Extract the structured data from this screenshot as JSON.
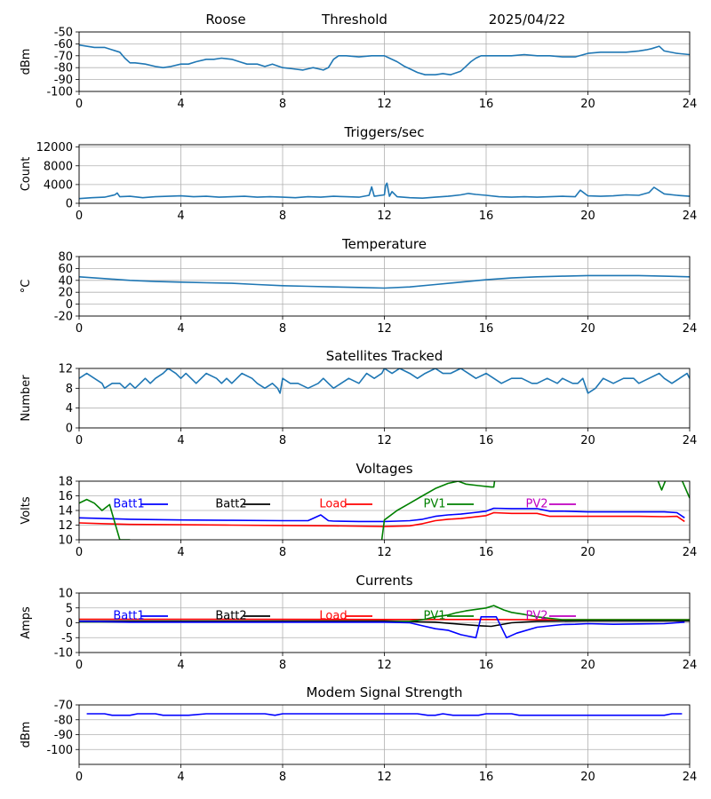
{
  "header": {
    "station": "Roose",
    "label": "Threshold",
    "date": "2025/04/22"
  },
  "colors": {
    "series_default": "#1f77b4",
    "blue": "#0000ff",
    "black": "#000000",
    "red": "#ff0000",
    "green": "#008000",
    "magenta": "#bf00bf",
    "grid": "#b0b0b0"
  },
  "chart_data": [
    {
      "id": "threshold",
      "type": "line",
      "title": "",
      "ylabel": "dBm",
      "ylim": [
        -100,
        -50
      ],
      "yticks": [
        -50,
        -60,
        -70,
        -80,
        -90,
        -100
      ],
      "xlim": [
        0,
        24
      ],
      "xticks": [
        0,
        4,
        8,
        12,
        16,
        20,
        24
      ],
      "series": [
        {
          "color": "#1f77b4",
          "x": [
            0,
            0.3,
            0.6,
            1,
            1.3,
            1.6,
            1.8,
            2,
            2.2,
            2.6,
            3,
            3.3,
            3.6,
            4,
            4.3,
            4.6,
            5,
            5.3,
            5.6,
            6,
            6.3,
            6.6,
            7,
            7.3,
            7.6,
            8,
            8.4,
            8.8,
            9,
            9.2,
            9.4,
            9.6,
            9.8,
            10,
            10.2,
            10.5,
            11,
            11.5,
            12,
            12.2,
            12.5,
            12.8,
            13,
            13.3,
            13.6,
            14,
            14.3,
            14.6,
            15,
            15.2,
            15.4,
            15.6,
            15.8,
            16,
            16.5,
            17,
            17.5,
            18,
            18.5,
            19,
            19.5,
            20,
            20.5,
            21,
            21.5,
            22,
            22.3,
            22.5,
            22.8,
            23,
            23.5,
            24
          ],
          "y": [
            -61,
            -62,
            -63,
            -63,
            -65,
            -67,
            -72,
            -76,
            -76,
            -77,
            -79,
            -80,
            -79,
            -77,
            -77,
            -75,
            -73,
            -73,
            -72,
            -73,
            -75,
            -77,
            -77,
            -79,
            -77,
            -80,
            -81,
            -82,
            -81,
            -80,
            -81,
            -82,
            -80,
            -73,
            -70,
            -70,
            -71,
            -70,
            -70,
            -72,
            -75,
            -79,
            -81,
            -84,
            -86,
            -86,
            -85,
            -86,
            -83,
            -79,
            -75,
            -72,
            -70,
            -70,
            -70,
            -70,
            -69,
            -70,
            -70,
            -71,
            -71,
            -68,
            -67,
            -67,
            -67,
            -66,
            -65,
            -64,
            -62,
            -66,
            -68,
            -69
          ]
        }
      ]
    },
    {
      "id": "triggers",
      "type": "line",
      "title": "Triggers/sec",
      "ylabel": "Count",
      "ylim": [
        0,
        12500
      ],
      "yticks": [
        0,
        4000,
        8000,
        12000
      ],
      "xlim": [
        0,
        24
      ],
      "xticks": [
        0,
        4,
        8,
        12,
        16,
        20,
        24
      ],
      "series": [
        {
          "color": "#1f77b4",
          "x": [
            0,
            0.5,
            1,
            1.4,
            1.5,
            1.6,
            2,
            2.5,
            3,
            3.5,
            4,
            4.5,
            5,
            5.5,
            6,
            6.5,
            7,
            7.5,
            8,
            8.5,
            9,
            9.5,
            10,
            10.5,
            11,
            11.4,
            11.5,
            11.6,
            12,
            12.05,
            12.1,
            12.2,
            12.3,
            12.5,
            13,
            13.5,
            14,
            14.5,
            15,
            15.3,
            15.6,
            16,
            16.5,
            17,
            17.5,
            18,
            18.5,
            19,
            19.5,
            19.7,
            20,
            20.5,
            21,
            21.5,
            22,
            22.4,
            22.6,
            23,
            23.5,
            24
          ],
          "y": [
            1000,
            1200,
            1300,
            1800,
            2200,
            1400,
            1500,
            1200,
            1400,
            1500,
            1600,
            1400,
            1500,
            1300,
            1400,
            1500,
            1300,
            1400,
            1300,
            1200,
            1400,
            1300,
            1500,
            1400,
            1300,
            1700,
            3500,
            1500,
            1800,
            3800,
            4300,
            1500,
            2500,
            1400,
            1200,
            1100,
            1300,
            1500,
            1800,
            2100,
            1900,
            1700,
            1400,
            1300,
            1400,
            1300,
            1400,
            1500,
            1400,
            2800,
            1600,
            1500,
            1600,
            1800,
            1700,
            2300,
            3400,
            2000,
            1700,
            1500
          ]
        }
      ]
    },
    {
      "id": "temperature",
      "type": "line",
      "title": "Temperature",
      "ylabel": "°C",
      "ylim": [
        -20,
        80
      ],
      "yticks": [
        -20,
        0,
        20,
        40,
        60,
        80
      ],
      "xlim": [
        0,
        24
      ],
      "xticks": [
        0,
        4,
        8,
        12,
        16,
        20,
        24
      ],
      "series": [
        {
          "color": "#1f77b4",
          "x": [
            0,
            1,
            2,
            3,
            4,
            5,
            6,
            7,
            8,
            9,
            10,
            11,
            12,
            13,
            14,
            15,
            16,
            17,
            18,
            19,
            20,
            21,
            22,
            23,
            24
          ],
          "y": [
            46,
            43,
            40,
            38,
            37,
            36,
            35,
            33,
            31,
            30,
            29,
            28,
            27,
            29,
            33,
            37,
            41,
            44,
            46,
            47,
            48,
            48,
            48,
            47,
            46
          ]
        }
      ]
    },
    {
      "id": "satellites",
      "type": "line",
      "title": "Satellites Tracked",
      "ylabel": "Number",
      "ylim": [
        0,
        12
      ],
      "yticks": [
        0,
        4,
        8,
        12
      ],
      "xlim": [
        0,
        24
      ],
      "xticks": [
        0,
        4,
        8,
        12,
        16,
        20,
        24
      ],
      "series": [
        {
          "color": "#1f77b4",
          "x": [
            0,
            0.3,
            0.6,
            0.9,
            1,
            1.3,
            1.6,
            1.8,
            2,
            2.2,
            2.4,
            2.6,
            2.8,
            3,
            3.3,
            3.5,
            3.8,
            4,
            4.2,
            4.4,
            4.6,
            4.8,
            5,
            5.4,
            5.6,
            5.8,
            6,
            6.4,
            6.8,
            7,
            7.3,
            7.6,
            7.8,
            7.9,
            8,
            8.3,
            8.6,
            9,
            9.4,
            9.6,
            9.8,
            10,
            10.3,
            10.6,
            11,
            11.3,
            11.6,
            11.9,
            12,
            12.3,
            12.6,
            13,
            13.3,
            13.6,
            14,
            14.3,
            14.6,
            15,
            15.3,
            15.6,
            16,
            16.3,
            16.6,
            17,
            17.4,
            17.8,
            18,
            18.4,
            18.8,
            19,
            19.4,
            19.6,
            19.8,
            20,
            20.3,
            20.6,
            21,
            21.4,
            21.8,
            22,
            22.4,
            22.8,
            23,
            23.3,
            23.6,
            23.9,
            24
          ],
          "y": [
            10,
            11,
            10,
            9,
            8,
            9,
            9,
            8,
            9,
            8,
            9,
            10,
            9,
            10,
            11,
            12,
            11,
            10,
            11,
            10,
            9,
            10,
            11,
            10,
            9,
            10,
            9,
            11,
            10,
            9,
            8,
            9,
            8,
            7,
            10,
            9,
            9,
            8,
            9,
            10,
            9,
            8,
            9,
            10,
            9,
            11,
            10,
            11,
            12,
            11,
            12,
            11,
            10,
            11,
            12,
            11,
            11,
            12,
            11,
            10,
            11,
            10,
            9,
            10,
            10,
            9,
            9,
            10,
            9,
            10,
            9,
            9,
            10,
            7,
            8,
            10,
            9,
            10,
            10,
            9,
            10,
            11,
            10,
            9,
            10,
            11,
            10
          ]
        }
      ]
    },
    {
      "id": "voltages",
      "type": "line",
      "title": "Voltages",
      "ylabel": "Volts",
      "ylim": [
        10,
        18
      ],
      "yticks": [
        10,
        12,
        14,
        16,
        18
      ],
      "xlim": [
        0,
        24
      ],
      "xticks": [
        0,
        4,
        8,
        12,
        16,
        20,
        24
      ],
      "legend": [
        "Batt1",
        "Batt2",
        "Load",
        "PV1",
        "PV2"
      ],
      "series": [
        {
          "name": "Batt1",
          "color": "#0000ff",
          "x": [
            0,
            1,
            2,
            4,
            6,
            8,
            9,
            9.5,
            9.8,
            10,
            11,
            12,
            12.5,
            13,
            13.5,
            14,
            14.5,
            15,
            15.5,
            16,
            16.3,
            17,
            18,
            18.5,
            19,
            20,
            21,
            22,
            23,
            23.5,
            23.8
          ],
          "y": [
            13,
            12.9,
            12.8,
            12.7,
            12.65,
            12.6,
            12.6,
            13.4,
            12.6,
            12.55,
            12.5,
            12.5,
            12.55,
            12.6,
            12.8,
            13.2,
            13.4,
            13.5,
            13.7,
            13.9,
            14.3,
            14.25,
            14.25,
            13.9,
            13.9,
            13.8,
            13.8,
            13.8,
            13.8,
            13.7,
            13
          ]
        },
        {
          "name": "Load",
          "color": "#ff0000",
          "x": [
            0,
            1,
            2,
            4,
            6,
            8,
            10,
            12,
            13,
            13.5,
            14,
            14.5,
            15,
            15.5,
            16,
            16.3,
            17,
            18,
            18.5,
            19,
            20,
            21,
            22,
            23,
            23.5,
            23.8
          ],
          "y": [
            12.3,
            12.2,
            12.1,
            12.05,
            12,
            11.95,
            11.9,
            11.8,
            11.9,
            12.2,
            12.6,
            12.8,
            12.9,
            13.1,
            13.3,
            13.7,
            13.6,
            13.6,
            13.2,
            13.2,
            13.2,
            13.2,
            13.2,
            13.15,
            13.2,
            12.5
          ]
        },
        {
          "name": "PV1",
          "color": "#008000",
          "x": [
            0,
            0.3,
            0.6,
            0.9,
            1.2,
            1.6,
            2
          ],
          "y": [
            15,
            15.5,
            15,
            14,
            14.8,
            10,
            10
          ]
        },
        {
          "name": "PV1",
          "color": "#008000",
          "x": [
            11.9,
            12,
            12.5,
            13,
            13.5,
            14,
            14.5,
            14.9,
            15.2,
            15.7,
            16.2,
            16.3,
            16.35
          ],
          "y": [
            10,
            12.7,
            14,
            15,
            16,
            17,
            17.7,
            18,
            17.6,
            17.4,
            17.2,
            17.2,
            18.5
          ]
        },
        {
          "name": "PV1",
          "color": "#008000",
          "x": [
            22.7,
            22.9,
            23.1,
            23.4,
            23.7,
            24
          ],
          "y": [
            18.5,
            16.8,
            18.5,
            18.5,
            18.1,
            15.7
          ]
        }
      ]
    },
    {
      "id": "currents",
      "type": "line",
      "title": "Currents",
      "ylabel": "Amps",
      "ylim": [
        -10,
        10
      ],
      "yticks": [
        -10,
        -5,
        0,
        5,
        10
      ],
      "xlim": [
        0,
        24
      ],
      "xticks": [
        0,
        4,
        8,
        12,
        16,
        20,
        24
      ],
      "legend": [
        "Batt1",
        "Batt2",
        "Load",
        "PV1",
        "PV2"
      ],
      "series": [
        {
          "name": "Load",
          "color": "#ff0000",
          "x": [
            0,
            6,
            12,
            16,
            18,
            20,
            24
          ],
          "y": [
            1.2,
            1.2,
            1.1,
            1.1,
            1,
            1,
            1
          ]
        },
        {
          "name": "Batt2",
          "color": "#000000",
          "x": [
            0,
            6,
            12,
            14,
            15,
            15.8,
            16.2,
            17,
            18,
            20,
            24
          ],
          "y": [
            0.6,
            0.6,
            0.6,
            0.2,
            -0.5,
            -1,
            -1.2,
            0,
            0.5,
            0.6,
            0.6
          ]
        },
        {
          "name": "PV1",
          "color": "#008000",
          "x": [
            0,
            6,
            12,
            13,
            13.6,
            14,
            14.5,
            14.8,
            15.2,
            15.6,
            16,
            16.3,
            16.7,
            17,
            17.5,
            18,
            18.5,
            19,
            20,
            24
          ],
          "y": [
            0.3,
            0.3,
            0.3,
            0.5,
            1.2,
            2,
            2.6,
            3.3,
            4,
            4.5,
            5,
            5.8,
            4.3,
            3.5,
            2.8,
            2,
            1.5,
            1,
            1,
            1
          ]
        },
        {
          "name": "Batt1",
          "color": "#0000ff",
          "x": [
            0,
            2,
            6,
            12,
            13,
            13.5,
            14,
            14.5,
            15,
            15.3,
            15.6,
            15.8,
            16,
            16.4,
            16.8,
            17.2,
            18,
            19,
            19.5,
            20,
            21,
            22,
            23,
            23.8
          ],
          "y": [
            0.5,
            0.2,
            0.2,
            0.2,
            0,
            -1,
            -2,
            -2.5,
            -4,
            -4.5,
            -5,
            2,
            2,
            2,
            -5,
            -3.5,
            -1.5,
            -0.6,
            -0.5,
            -0.3,
            -0.5,
            -0.4,
            -0.3,
            0.2
          ]
        }
      ]
    },
    {
      "id": "modem",
      "type": "line",
      "title": "Modem Signal Strength",
      "ylabel": "dBm",
      "ylim": [
        -110,
        -70
      ],
      "yticks": [
        -70,
        -80,
        -90,
        -100
      ],
      "xlim": [
        0,
        24
      ],
      "xticks": [
        0,
        4,
        8,
        12,
        16,
        20,
        24
      ],
      "series": [
        {
          "color": "#0000ff",
          "x": [
            0.3,
            1,
            1.3,
            2,
            2.3,
            3,
            3.3,
            4,
            4.3,
            5,
            6,
            7,
            7.3,
            7.7,
            8,
            8.3,
            9,
            10,
            11,
            12,
            13,
            13.3,
            13.7,
            14,
            14.3,
            14.7,
            15,
            15.3,
            15.7,
            16,
            16.3,
            17,
            17.3,
            18,
            19,
            20,
            21,
            22,
            23,
            23.3,
            23.7
          ],
          "y": [
            -76,
            -76,
            -77,
            -77,
            -76,
            -76,
            -77,
            -77,
            -77,
            -76,
            -76,
            -76,
            -76,
            -77,
            -76,
            -76,
            -76,
            -76,
            -76,
            -76,
            -76,
            -76,
            -77,
            -77,
            -76,
            -77,
            -77,
            -77,
            -77,
            -76,
            -76,
            -76,
            -77,
            -77,
            -77,
            -77,
            -77,
            -77,
            -77,
            -76,
            -76
          ]
        }
      ]
    }
  ]
}
